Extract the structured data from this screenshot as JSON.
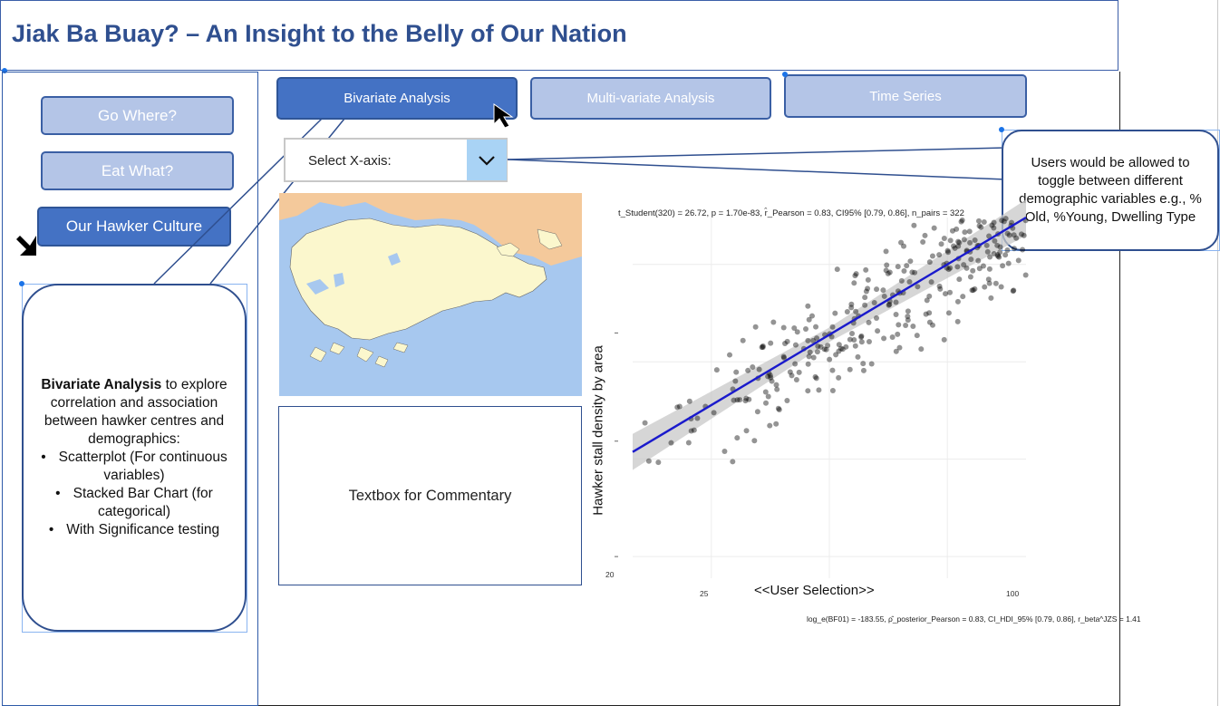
{
  "header": {
    "title": "Jiak Ba Buay? – An Insight to the Belly of Our Nation"
  },
  "sidebar": {
    "items": [
      {
        "label": "Go Where?",
        "active": false
      },
      {
        "label": "Eat What?",
        "active": false
      },
      {
        "label": "Our Hawker Culture",
        "active": true
      }
    ]
  },
  "tabs": [
    {
      "label": "Bivariate Analysis",
      "active": true
    },
    {
      "label": "Multi-variate Analysis",
      "active": false
    },
    {
      "label": "Time Series",
      "active": false
    }
  ],
  "left_callout": {
    "bold": "Bivariate Analysis",
    "text": "to explore correlation and association between hawker centres and demographics:",
    "bullets": [
      "Scatterplot (For continuous variables)",
      "Stacked Bar Chart (for categorical)",
      "With Significance testing"
    ]
  },
  "dropdown": {
    "label": "Select X-axis:"
  },
  "right_callout": {
    "text": "Users would be allowed to toggle between different demographic variables e.g., % Old, %Young, Dwelling Type"
  },
  "textbox": {
    "label": "Textbox for Commentary"
  },
  "colors": {
    "accent": "#4472c4",
    "accent_light": "#b4c5e7",
    "title": "#2f4f8f",
    "regression_line": "#1a1acc"
  },
  "chart_data": {
    "type": "scatter",
    "title": "t_Student(320) = 26.72, p = 1.70e-83, r̂_Pearson = 0.83, CI95% [0.79, 0.86], n_pairs = 322",
    "subtitle": "log_e(BF01) = -183.55, ρ̂_posterior_Pearson = 0.83, CI_HDI_95% [0.79, 0.86], r_beta^JZS = 1.41",
    "xlabel": "<<User Selection>>",
    "ylabel": "Hawker stall density by area",
    "x_ticks": [
      "25",
      "100"
    ],
    "y_ticks": [
      "20"
    ],
    "xlim": [
      0,
      100
    ],
    "ylim": [
      0,
      100
    ],
    "grid": true,
    "regression_line": {
      "from": [
        0,
        35
      ],
      "to": [
        100,
        100
      ],
      "confidence_band": true
    }
  }
}
